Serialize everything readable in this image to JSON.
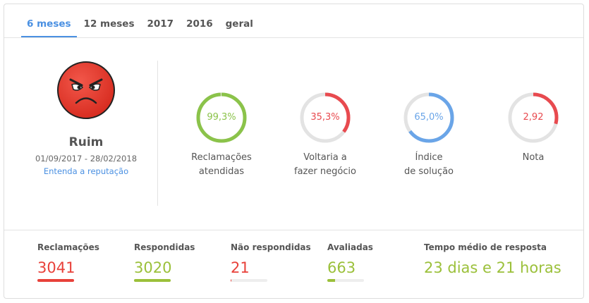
{
  "tabs": [
    {
      "label": "6 meses",
      "active": true
    },
    {
      "label": "12 meses"
    },
    {
      "label": "2017"
    },
    {
      "label": "2016"
    },
    {
      "label": "geral"
    }
  ],
  "reputation": {
    "icon": "angry-face-icon",
    "rating": "Ruim",
    "period": "01/09/2017 - 28/02/2018",
    "link": "Entenda a reputação"
  },
  "metrics": [
    {
      "value": "99,3%",
      "percent": 99.3,
      "color": "#8bc34a",
      "label1": "Reclamações",
      "label2": "atendidas"
    },
    {
      "value": "35,3%",
      "percent": 35.3,
      "color": "#e84a4f",
      "label1": "Voltaria a",
      "label2": "fazer negócio"
    },
    {
      "value": "65,0%",
      "percent": 65.0,
      "color": "#6aa5e8",
      "label1": "Índice",
      "label2": "de solução"
    },
    {
      "value": "2,92",
      "percent": 29.2,
      "color": "#e84a4f",
      "label1": "Nota",
      "label2": ""
    }
  ],
  "stats": [
    {
      "label": "Reclamações",
      "value": "3041",
      "color": "#e8413a",
      "bar_percent": 100
    },
    {
      "label": "Respondidas",
      "value": "3020",
      "color": "#9bc03a",
      "bar_percent": 99.3
    },
    {
      "label": "Não respondidas",
      "value": "21",
      "color": "#e8413a",
      "bar_percent": 0.7
    },
    {
      "label": "Avaliadas",
      "value": "663",
      "color": "#9bc03a",
      "bar_percent": 22
    },
    {
      "label": "Tempo médio de resposta",
      "value": "23 dias e 21 horas",
      "color": "#9bc03a"
    }
  ],
  "colors": {
    "accent": "#4a90e2",
    "track": "#e3e3e3"
  }
}
